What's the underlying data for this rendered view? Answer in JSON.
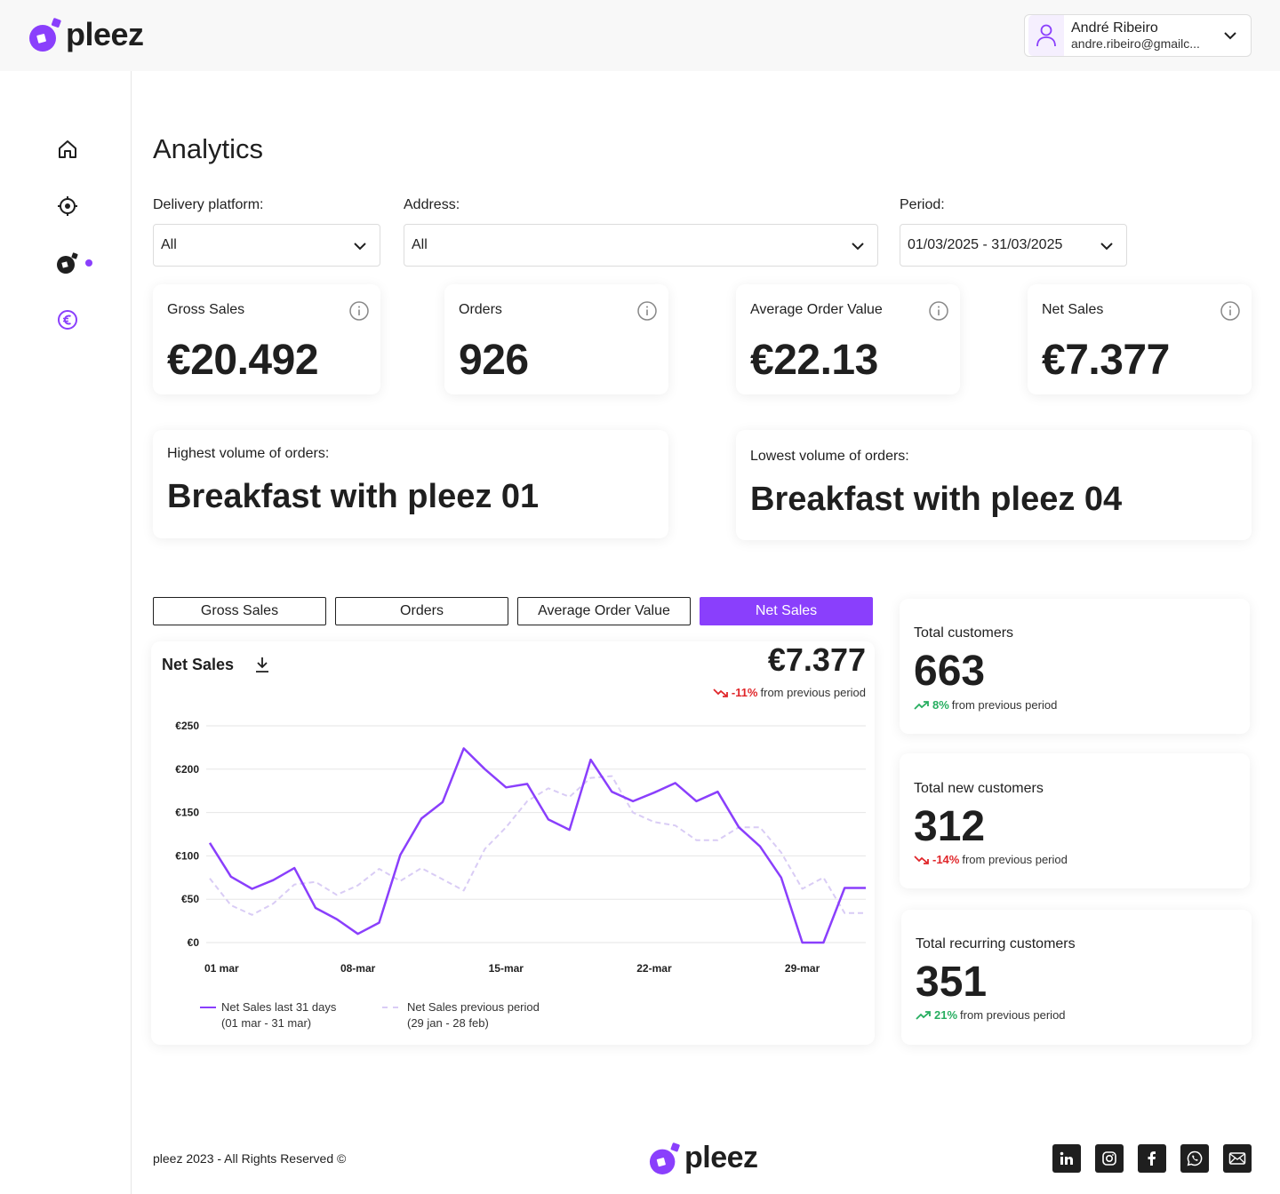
{
  "header": {
    "logo_text": "pleez",
    "user_name": "André Ribeiro",
    "user_email": "andre.ribeiro@gmailc..."
  },
  "sidebar": {
    "items": [
      {
        "icon": "home-icon"
      },
      {
        "icon": "target-icon"
      },
      {
        "icon": "pleez-orders-icon"
      },
      {
        "icon": "euro-icon",
        "active": true
      }
    ]
  },
  "page": {
    "title": "Analytics"
  },
  "filters": {
    "platform_label": "Delivery platform:",
    "platform_value": "All",
    "address_label": "Address:",
    "address_value": "All",
    "period_label": "Period:",
    "period_value": "01/03/2025 - 31/03/2025"
  },
  "kpis": [
    {
      "label": "Gross Sales",
      "value": "€20.492"
    },
    {
      "label": "Orders",
      "value": "926"
    },
    {
      "label": "Average Order Value",
      "value": "€22.13"
    },
    {
      "label": "Net Sales",
      "value": "€7.377"
    }
  ],
  "volume": {
    "highest_label": "Highest volume of orders:",
    "highest_value": "Breakfast with pleez 01",
    "lowest_label": "Lowest volume of orders:",
    "lowest_value": "Breakfast with pleez 04"
  },
  "tabs": [
    {
      "label": "Gross Sales"
    },
    {
      "label": "Orders"
    },
    {
      "label": "Average Order Value"
    },
    {
      "label": "Net Sales",
      "active": true
    }
  ],
  "chart_panel": {
    "title": "Net Sales",
    "total": "€7.377",
    "change": "-11%",
    "change_suffix": "from previous period",
    "legend_current_line1": "Net Sales last 31 days",
    "legend_current_line2": "(01 mar - 31 mar)",
    "legend_previous_line1": "Net Sales previous period",
    "legend_previous_line2": "(29 jan - 28 feb)"
  },
  "chart_data": {
    "type": "line",
    "title": "Net Sales",
    "xlabel": "",
    "ylabel": "",
    "ylim": [
      0,
      250
    ],
    "y_ticks": [
      "€0",
      "€50",
      "€100",
      "€150",
      "€200",
      "€250"
    ],
    "x_tick_labels": [
      "01 mar",
      "08-mar",
      "15-mar",
      "22-mar",
      "29-mar"
    ],
    "x_tick_days": [
      1,
      8,
      15,
      22,
      29
    ],
    "grid": true,
    "legend_position": "bottom-left",
    "series": [
      {
        "name": "Net Sales last 31 days",
        "color": "#8a3ffc",
        "dashed": false,
        "x": [
          1,
          2,
          3,
          4,
          5,
          6,
          7,
          8,
          9,
          10,
          11,
          12,
          13,
          14,
          15,
          16,
          17,
          18,
          19,
          20,
          21,
          22,
          23,
          24,
          25,
          26,
          27,
          28,
          29,
          30,
          31,
          32
        ],
        "values": [
          115,
          76,
          62,
          72,
          86,
          40,
          27,
          10,
          23,
          101,
          143,
          162,
          224,
          200,
          179,
          183,
          142,
          130,
          211,
          174,
          163,
          173,
          184,
          163,
          174,
          133,
          111,
          75,
          0,
          0,
          63,
          63
        ]
      },
      {
        "name": "Net Sales previous period",
        "color": "#d9ccf5",
        "dashed": true,
        "x": [
          1,
          2,
          3,
          4,
          5,
          6,
          7,
          8,
          9,
          10,
          11,
          12,
          13,
          14,
          15,
          16,
          17,
          18,
          19,
          20,
          21,
          22,
          23,
          24,
          25,
          26,
          27,
          28,
          29,
          30,
          31,
          32
        ],
        "values": [
          74,
          43,
          32,
          45,
          67,
          70,
          55,
          66,
          85,
          71,
          86,
          73,
          60,
          108,
          133,
          163,
          178,
          168,
          190,
          192,
          150,
          139,
          135,
          118,
          118,
          133,
          133,
          104,
          62,
          75,
          34,
          34
        ]
      }
    ]
  },
  "customers": [
    {
      "label": "Total customers",
      "value": "663",
      "change": "8%",
      "direction": "up",
      "suffix": "from previous period"
    },
    {
      "label": "Total new customers",
      "value": "312",
      "change": "-14%",
      "direction": "down",
      "suffix": "from previous period"
    },
    {
      "label": "Total recurring customers",
      "value": "351",
      "change": "21%",
      "direction": "up",
      "suffix": "from previous period"
    }
  ],
  "footer": {
    "copyright": "pleez 2023 - All Rights Reserved ©",
    "logo_text": "pleez",
    "social": [
      "linkedin-icon",
      "instagram-icon",
      "facebook-icon",
      "whatsapp-icon",
      "mail-icon"
    ]
  },
  "colors": {
    "accent": "#8a3ffc",
    "previous_series": "#d9ccf5",
    "negative": "#e0262a",
    "positive": "#27ae60"
  }
}
